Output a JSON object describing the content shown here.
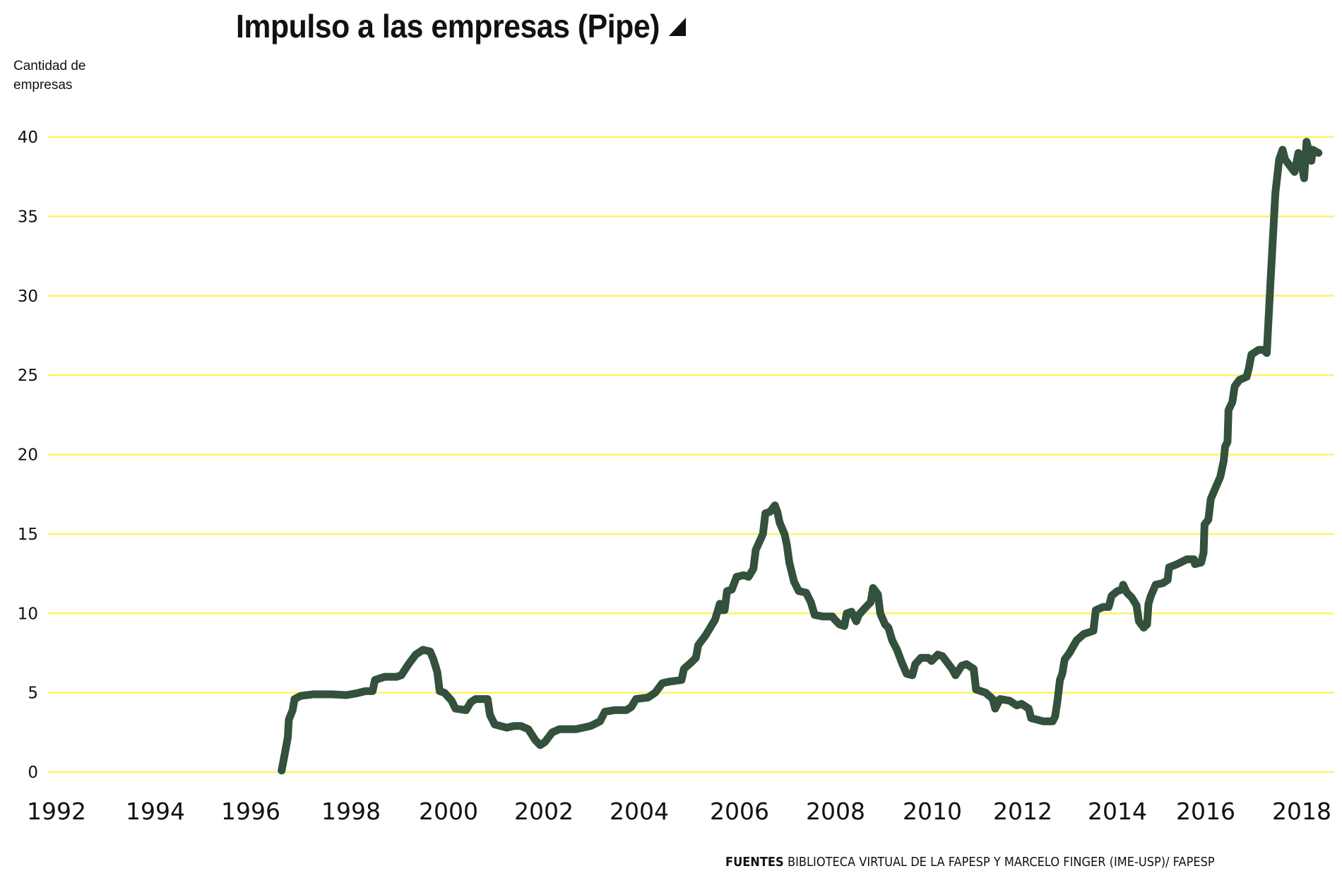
{
  "chart_data": {
    "type": "line",
    "title": "Impulso a las empresas (Pipe)",
    "title_marker": "triangle-icon",
    "ylabel": "Cantidad de empresas",
    "xlabel": "",
    "ylim": [
      0,
      40
    ],
    "xlim": [
      1992,
      2018.7
    ],
    "y_ticks": [
      0,
      5,
      10,
      15,
      20,
      25,
      30,
      35,
      40
    ],
    "y_tick_labels": [
      "0",
      "5",
      "10",
      "15",
      "20",
      "25",
      "30",
      "35",
      "40"
    ],
    "x_ticks": [
      1992,
      1994,
      1996,
      1998,
      2000,
      2002,
      2004,
      2006,
      2008,
      2010,
      2012,
      2014,
      2016,
      2018
    ],
    "x_tick_labels": [
      "1992",
      "1994",
      "1996",
      "1998",
      "2000",
      "2002",
      "2004",
      "2006",
      "2008",
      "2010",
      "2012",
      "2014",
      "2016",
      "2018"
    ],
    "grid": "horizontal",
    "legend": "none",
    "colors": {
      "line": "#33513c",
      "grid": "#fff266"
    },
    "series": [
      {
        "name": "Cantidad de empresas",
        "points": [
          [
            1997.55,
            0.1
          ],
          [
            1997.62,
            1.2
          ],
          [
            1997.68,
            2.2
          ],
          [
            1997.7,
            3.3
          ],
          [
            1997.78,
            3.9
          ],
          [
            1997.82,
            4.6
          ],
          [
            1997.95,
            4.8
          ],
          [
            1998.2,
            4.9
          ],
          [
            1998.6,
            4.9
          ],
          [
            1998.9,
            4.85
          ],
          [
            1999.1,
            4.95
          ],
          [
            1999.3,
            5.1
          ],
          [
            1999.45,
            5.1
          ],
          [
            1999.5,
            5.8
          ],
          [
            1999.7,
            6.0
          ],
          [
            1999.95,
            6.0
          ],
          [
            2000.05,
            6.1
          ],
          [
            2000.2,
            6.8
          ],
          [
            2000.35,
            7.4
          ],
          [
            2000.5,
            7.7
          ],
          [
            2000.65,
            7.6
          ],
          [
            2000.72,
            7.1
          ],
          [
            2000.8,
            6.3
          ],
          [
            2000.85,
            5.1
          ],
          [
            2000.95,
            5.0
          ],
          [
            2001.1,
            4.5
          ],
          [
            2001.18,
            4.0
          ],
          [
            2001.4,
            3.9
          ],
          [
            2001.5,
            4.4
          ],
          [
            2001.6,
            4.6
          ],
          [
            2001.85,
            4.6
          ],
          [
            2001.9,
            3.6
          ],
          [
            2002.0,
            3.0
          ],
          [
            2002.25,
            2.8
          ],
          [
            2002.4,
            2.9
          ],
          [
            2002.55,
            2.9
          ],
          [
            2002.7,
            2.7
          ],
          [
            2002.85,
            2.0
          ],
          [
            2002.95,
            1.7
          ],
          [
            2003.05,
            1.9
          ],
          [
            2003.2,
            2.5
          ],
          [
            2003.35,
            2.7
          ],
          [
            2003.7,
            2.7
          ],
          [
            2004.0,
            2.9
          ],
          [
            2004.2,
            3.2
          ],
          [
            2004.3,
            3.8
          ],
          [
            2004.5,
            3.9
          ],
          [
            2004.75,
            3.9
          ],
          [
            2004.85,
            4.1
          ],
          [
            2004.95,
            4.6
          ],
          [
            2005.2,
            4.7
          ],
          [
            2005.35,
            5.0
          ],
          [
            2005.5,
            5.6
          ],
          [
            2005.65,
            5.7
          ],
          [
            2005.9,
            5.8
          ],
          [
            2005.95,
            6.5
          ],
          [
            2006.1,
            6.9
          ],
          [
            2006.2,
            7.2
          ],
          [
            2006.25,
            8.0
          ],
          [
            2006.4,
            8.6
          ],
          [
            2006.6,
            9.6
          ],
          [
            2006.7,
            10.6
          ],
          [
            2006.75,
            10.2
          ],
          [
            2006.8,
            10.2
          ],
          [
            2006.85,
            11.4
          ],
          [
            2006.95,
            11.5
          ],
          [
            2007.05,
            12.3
          ],
          [
            2007.2,
            12.4
          ],
          [
            2007.3,
            12.3
          ],
          [
            2007.4,
            12.8
          ],
          [
            2007.45,
            14.0
          ],
          [
            2007.6,
            15.0
          ],
          [
            2007.65,
            16.3
          ],
          [
            2007.75,
            16.4
          ],
          [
            2007.85,
            16.8
          ],
          [
            2007.9,
            16.4
          ],
          [
            2007.95,
            15.7
          ],
          [
            2008.05,
            15.0
          ],
          [
            2008.1,
            14.3
          ],
          [
            2008.15,
            13.2
          ],
          [
            2008.25,
            12.0
          ],
          [
            2008.35,
            11.4
          ],
          [
            2008.5,
            11.3
          ],
          [
            2008.6,
            10.7
          ],
          [
            2008.68,
            9.9
          ],
          [
            2008.85,
            9.8
          ],
          [
            2009.05,
            9.8
          ],
          [
            2009.1,
            9.6
          ],
          [
            2009.2,
            9.3
          ],
          [
            2009.3,
            9.2
          ],
          [
            2009.35,
            10.0
          ],
          [
            2009.45,
            10.1
          ],
          [
            2009.55,
            9.5
          ],
          [
            2009.6,
            9.9
          ],
          [
            2009.75,
            10.4
          ],
          [
            2009.85,
            10.7
          ],
          [
            2009.9,
            11.6
          ],
          [
            2010.0,
            11.2
          ],
          [
            2010.05,
            10.0
          ],
          [
            2010.15,
            9.3
          ],
          [
            2010.22,
            9.1
          ],
          [
            2010.3,
            8.3
          ],
          [
            2010.4,
            7.7
          ],
          [
            2010.5,
            6.9
          ],
          [
            2010.6,
            6.2
          ],
          [
            2010.72,
            6.1
          ],
          [
            2010.78,
            6.8
          ],
          [
            2010.9,
            7.2
          ],
          [
            2011.05,
            7.2
          ],
          [
            2011.12,
            7.0
          ],
          [
            2011.25,
            7.4
          ],
          [
            2011.35,
            7.3
          ],
          [
            2011.55,
            6.5
          ],
          [
            2011.62,
            6.1
          ],
          [
            2011.75,
            6.7
          ],
          [
            2011.85,
            6.8
          ],
          [
            2012.0,
            6.5
          ],
          [
            2012.05,
            5.2
          ],
          [
            2012.25,
            5.0
          ],
          [
            2012.4,
            4.6
          ],
          [
            2012.45,
            4.0
          ],
          [
            2012.55,
            4.6
          ],
          [
            2012.75,
            4.5
          ],
          [
            2012.9,
            4.2
          ],
          [
            2013.0,
            4.3
          ],
          [
            2013.15,
            4.0
          ],
          [
            2013.2,
            3.4
          ],
          [
            2013.45,
            3.2
          ],
          [
            2013.65,
            3.2
          ],
          [
            2013.7,
            3.5
          ],
          [
            2013.75,
            4.5
          ],
          [
            2013.8,
            5.8
          ],
          [
            2013.85,
            6.2
          ],
          [
            2013.9,
            7.1
          ],
          [
            2014.0,
            7.5
          ],
          [
            2014.15,
            8.3
          ],
          [
            2014.3,
            8.7
          ],
          [
            2014.5,
            8.9
          ],
          [
            2014.55,
            10.2
          ],
          [
            2014.7,
            10.4
          ],
          [
            2014.82,
            10.4
          ],
          [
            2014.88,
            11.1
          ],
          [
            2015.0,
            11.4
          ],
          [
            2015.1,
            11.5
          ],
          [
            2015.12,
            11.8
          ],
          [
            2015.2,
            11.3
          ],
          [
            2015.3,
            11.0
          ],
          [
            2015.4,
            10.5
          ],
          [
            2015.45,
            9.5
          ],
          [
            2015.55,
            9.1
          ],
          [
            2015.62,
            9.3
          ],
          [
            2015.65,
            10.6
          ],
          [
            2015.7,
            11.1
          ],
          [
            2015.8,
            11.8
          ],
          [
            2015.95,
            11.9
          ],
          [
            2016.05,
            12.1
          ],
          [
            2016.08,
            12.9
          ],
          [
            2016.25,
            13.1
          ],
          [
            2016.45,
            13.4
          ],
          [
            2016.6,
            13.4
          ],
          [
            2016.62,
            13.1
          ],
          [
            2016.75,
            13.2
          ],
          [
            2016.8,
            13.8
          ],
          [
            2016.82,
            15.6
          ],
          [
            2016.9,
            15.9
          ],
          [
            2016.95,
            17.2
          ],
          [
            2017.05,
            17.9
          ],
          [
            2017.15,
            18.6
          ],
          [
            2017.22,
            19.6
          ],
          [
            2017.25,
            20.5
          ],
          [
            2017.3,
            20.8
          ],
          [
            2017.32,
            22.8
          ],
          [
            2017.4,
            23.3
          ],
          [
            2017.45,
            24.3
          ],
          [
            2017.55,
            24.7
          ],
          [
            2017.7,
            24.9
          ],
          [
            2017.75,
            25.5
          ],
          [
            2017.8,
            26.3
          ],
          [
            2017.95,
            26.6
          ],
          [
            2018.05,
            26.6
          ],
          [
            2018.12,
            26.4
          ],
          [
            2018.2,
            31.0
          ],
          [
            2018.3,
            36.5
          ],
          [
            2018.38,
            38.6
          ],
          [
            2018.45,
            39.2
          ],
          [
            2018.5,
            38.6
          ],
          [
            2018.6,
            38.2
          ],
          [
            2018.7,
            37.8
          ],
          [
            2018.78,
            39.0
          ],
          [
            2018.85,
            38.2
          ],
          [
            2018.9,
            37.4
          ],
          [
            2018.95,
            39.7
          ],
          [
            2019.0,
            39.1
          ],
          [
            2019.05,
            38.5
          ],
          [
            2019.08,
            39.2
          ],
          [
            2019.2,
            39.0
          ]
        ]
      }
    ]
  },
  "header": {
    "title": "Impulso a las empresas (Pipe)",
    "ylabel_line1": "Cantidad de",
    "ylabel_line2": "empresas"
  },
  "footer": {
    "label": "FUENTES",
    "text": "BIBLIOTECA VIRTUAL DE LA FAPESP Y MARCELO FINGER (IME-USP)/ FAPESP"
  }
}
